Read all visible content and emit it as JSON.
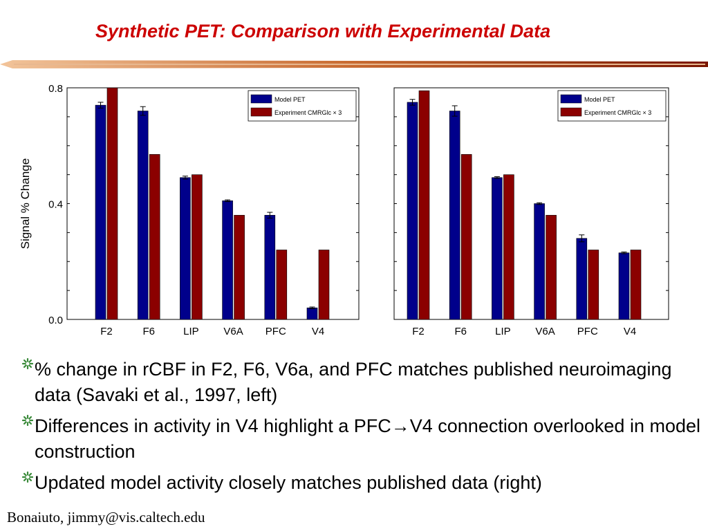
{
  "slide": {
    "title": "Synthetic PET: Comparison with Experimental Data",
    "footer": "Bonaiuto, jimmy@vis.caltech.edu",
    "colors": {
      "title": "#cc0000",
      "rule_dark": "#8b1a00",
      "rule_light": "#e8a070",
      "bullet": "#3a8a3a"
    },
    "bullets": [
      {
        "icon": "flower-bullet-icon",
        "text": "% change in rCBF in F2, F6, V6a, and PFC matches published neuroimaging data (Savaki et al., 1997, left)"
      },
      {
        "icon": "flower-bullet-icon",
        "text": "Differences in activity in V4 highlight a PFC→V4 connection overlooked in model construction"
      },
      {
        "icon": "flower-bullet-icon",
        "text": "Updated model activity closely matches published data (right)"
      }
    ]
  },
  "chart_data": [
    {
      "type": "bar",
      "ylabel": "Signal % Change",
      "xlabel": "",
      "ylim": [
        0,
        0.8
      ],
      "yticks": [
        "0.0",
        "0.4",
        "0.8"
      ],
      "categories": [
        "F2",
        "F6",
        "LIP",
        "V6A",
        "PFC",
        "V4"
      ],
      "legend_position": "top-right",
      "grid": false,
      "series": [
        {
          "name": "Model PET",
          "color": "#00008b",
          "values": [
            0.74,
            0.72,
            0.49,
            0.41,
            0.36,
            0.04
          ],
          "errors": [
            0.01,
            0.015,
            0.005,
            0.003,
            0.01,
            0.003
          ]
        },
        {
          "name": "Experiment CMRGlc × 3",
          "color": "#8b0000",
          "values": [
            0.8,
            0.57,
            0.5,
            0.36,
            0.24,
            0.24
          ]
        }
      ]
    },
    {
      "type": "bar",
      "ylabel": "",
      "xlabel": "",
      "ylim": [
        0,
        0.8
      ],
      "yticks": [],
      "categories": [
        "F2",
        "F6",
        "LIP",
        "V6A",
        "PFC",
        "V4"
      ],
      "legend_position": "top-right",
      "grid": false,
      "series": [
        {
          "name": "Model PET",
          "color": "#00008b",
          "values": [
            0.75,
            0.72,
            0.49,
            0.4,
            0.28,
            0.23
          ],
          "errors": [
            0.01,
            0.018,
            0.003,
            0.003,
            0.012,
            0.003
          ]
        },
        {
          "name": "Experiment CMRGlc × 3",
          "color": "#8b0000",
          "values": [
            0.79,
            0.57,
            0.5,
            0.36,
            0.24,
            0.24
          ]
        }
      ]
    }
  ]
}
